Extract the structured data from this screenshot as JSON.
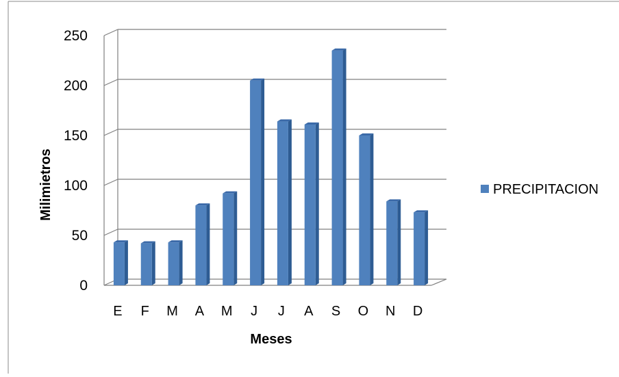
{
  "chart_data": {
    "type": "bar",
    "categories": [
      "E",
      "F",
      "M",
      "A",
      "M",
      "J",
      "J",
      "A",
      "S",
      "O",
      "N",
      "D"
    ],
    "series": [
      {
        "name": "PRECIPITACION",
        "values": [
          43,
          42,
          43,
          80,
          92,
          205,
          164,
          161,
          235,
          150,
          84,
          73
        ],
        "color": "#4F81BD"
      }
    ],
    "xlabel": "Meses",
    "ylabel": "Milimietros",
    "ylim": [
      0,
      250
    ],
    "yticks": [
      "0",
      "50",
      "100",
      "150",
      "200",
      "250"
    ],
    "grid": true,
    "legend": "right"
  }
}
